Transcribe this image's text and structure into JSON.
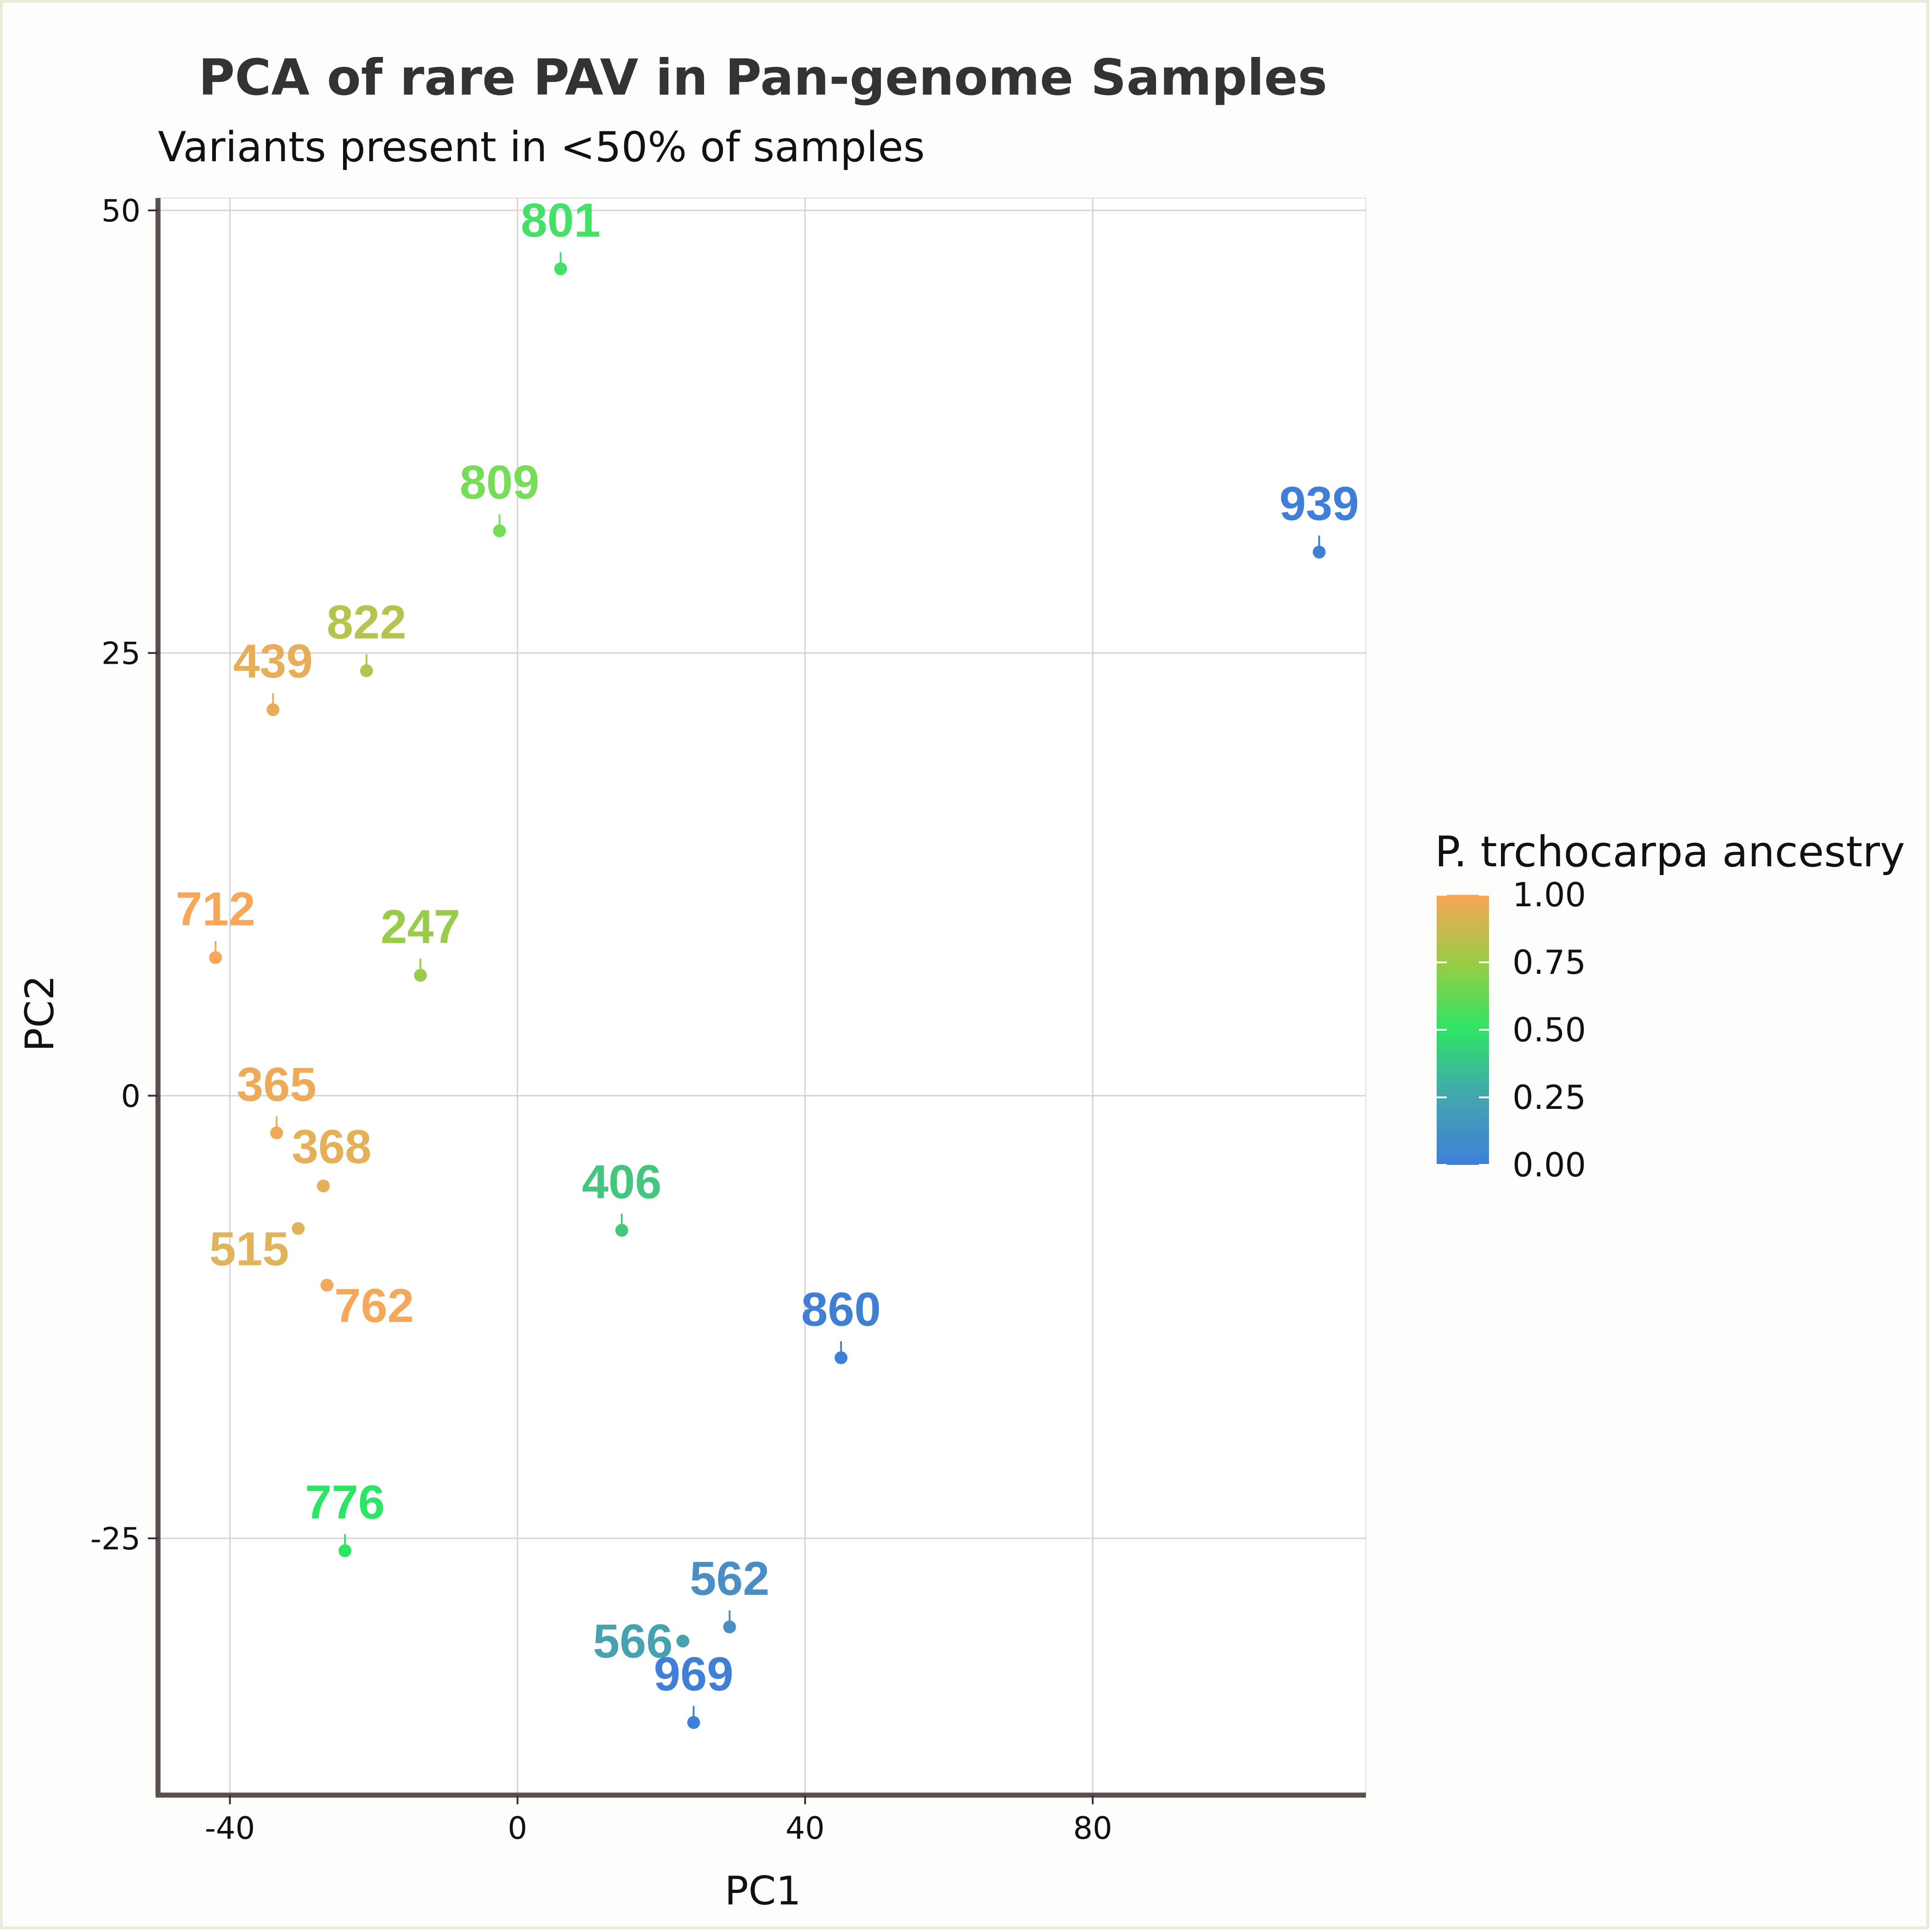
{
  "chart_data": {
    "type": "scatter",
    "title": "PCA of rare PAV in Pan-genome Samples",
    "subtitle": "Variants present in <50% of samples",
    "xlabel": "PC1",
    "ylabel": "PC2",
    "xlim": [
      -50,
      118
    ],
    "ylim": [
      -39.5,
      50.7
    ],
    "xticks": [
      -40,
      0,
      40,
      80
    ],
    "yticks": [
      -25,
      0,
      25,
      50
    ],
    "xtick_labels": [
      "-40",
      "0",
      "40",
      "80"
    ],
    "ytick_labels": [
      "-25",
      "0",
      "25",
      "50"
    ],
    "grid": true,
    "legend": {
      "title": "P. trchocarpa ancestry",
      "placement": "right",
      "ticks": [
        "1.00",
        "0.75",
        "0.50",
        "0.25",
        "0.00"
      ],
      "tick_values": [
        1.0,
        0.75,
        0.5,
        0.25,
        0.0
      ],
      "colors": [
        "#3f7fd8",
        "#42a5b0",
        "#2ee466",
        "#9acc44",
        "#f8a658"
      ]
    },
    "points": [
      {
        "label": "801",
        "x": 6.0,
        "y": 46.7,
        "ancestry": 0.52,
        "color": "#44e166",
        "lpos": "above"
      },
      {
        "label": "809",
        "x": -2.5,
        "y": 31.9,
        "ancestry": 0.65,
        "color": "#77dc58",
        "lpos": "above"
      },
      {
        "label": "939",
        "x": 111.5,
        "y": 30.7,
        "ancestry": 0.02,
        "color": "#3f7fd8",
        "lpos": "above"
      },
      {
        "label": "822",
        "x": -21.0,
        "y": 24.0,
        "ancestry": 0.8,
        "color": "#b7c34f",
        "lpos": "above"
      },
      {
        "label": "439",
        "x": -34.0,
        "y": 21.8,
        "ancestry": 0.93,
        "color": "#e8ad58",
        "lpos": "above"
      },
      {
        "label": "712",
        "x": -42.0,
        "y": 7.8,
        "ancestry": 0.99,
        "color": "#f8a658",
        "lpos": "above"
      },
      {
        "label": "247",
        "x": -13.5,
        "y": 6.8,
        "ancestry": 0.72,
        "color": "#9acc4c",
        "lpos": "above"
      },
      {
        "label": "365",
        "x": -33.5,
        "y": -2.1,
        "ancestry": 0.95,
        "color": "#edaa58",
        "lpos": "above"
      },
      {
        "label": "368",
        "x": -27.0,
        "y": -5.1,
        "ancestry": 0.93,
        "color": "#e6b058",
        "lpos": "above-right"
      },
      {
        "label": "406",
        "x": 14.5,
        "y": -7.6,
        "ancestry": 0.38,
        "color": "#44c67f",
        "lpos": "above"
      },
      {
        "label": "515",
        "x": -30.5,
        "y": -7.5,
        "ancestry": 0.9,
        "color": "#e0b45a",
        "lpos": "below-left"
      },
      {
        "label": "762",
        "x": -26.5,
        "y": -10.7,
        "ancestry": 0.97,
        "color": "#f4a85a",
        "lpos": "below-right"
      },
      {
        "label": "860",
        "x": 45.0,
        "y": -14.8,
        "ancestry": 0.03,
        "color": "#3f80d4",
        "lpos": "above"
      },
      {
        "label": "776",
        "x": -24.0,
        "y": -25.7,
        "ancestry": 0.5,
        "color": "#2de564",
        "lpos": "above"
      },
      {
        "label": "562",
        "x": 29.5,
        "y": -30.0,
        "ancestry": 0.12,
        "color": "#4a8ec4",
        "lpos": "above"
      },
      {
        "label": "566",
        "x": 23.0,
        "y": -30.8,
        "ancestry": 0.22,
        "color": "#46a2b0",
        "lpos": "left"
      },
      {
        "label": "969",
        "x": 24.5,
        "y": -35.4,
        "ancestry": 0.02,
        "color": "#3f7fd8",
        "lpos": "above"
      }
    ]
  }
}
